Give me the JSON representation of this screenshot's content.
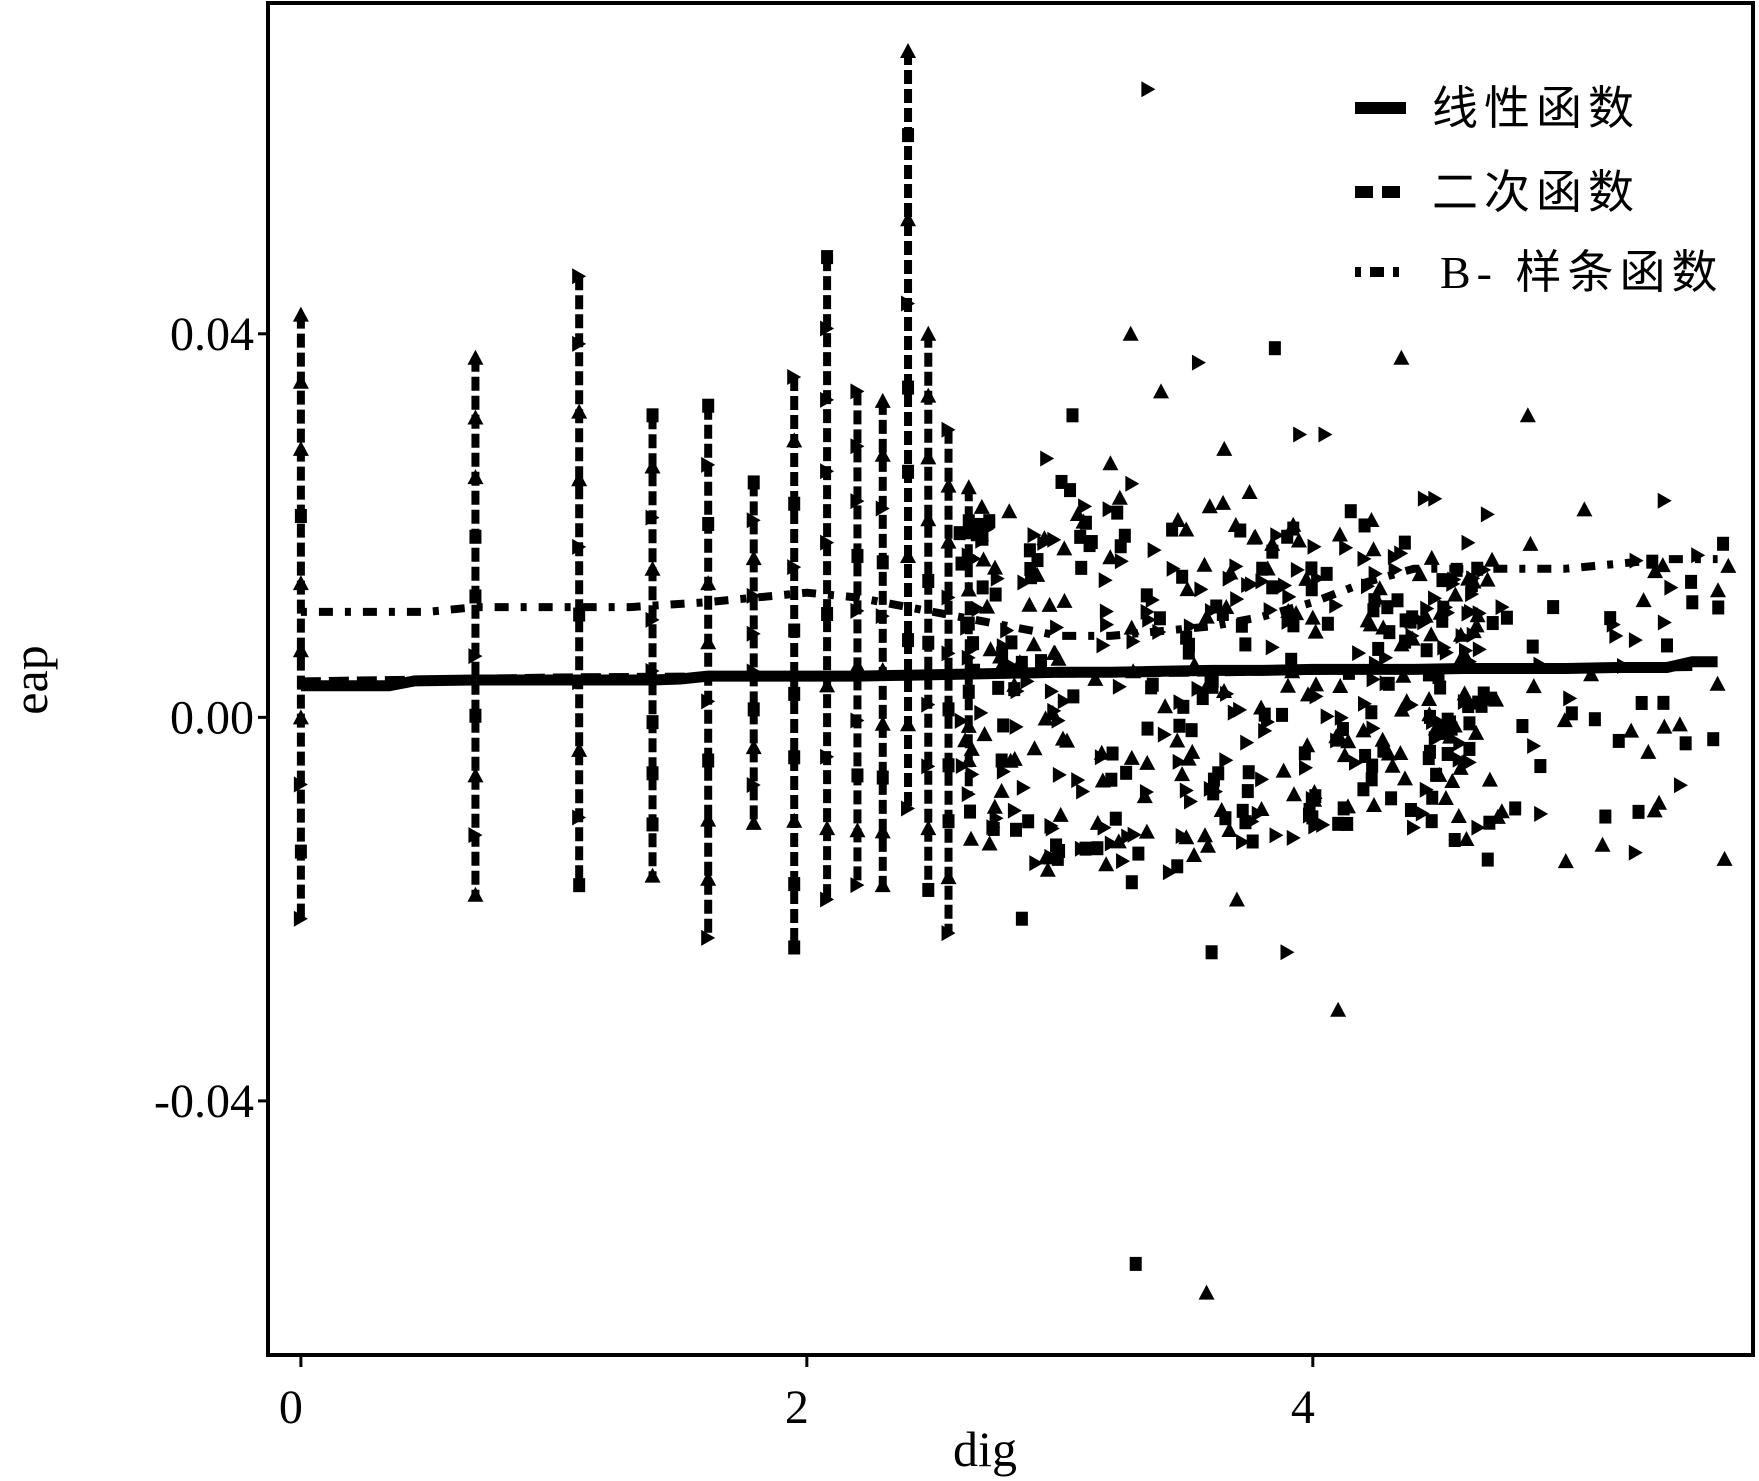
{
  "chart_data": {
    "type": "scatter",
    "xlabel": "dig",
    "ylabel": "eap",
    "xlim": [
      -0.13,
      5.74
    ],
    "ylim": [
      -0.0665,
      0.0745
    ],
    "x_ticks": [
      {
        "value": 0,
        "label": "0"
      },
      {
        "value": 2,
        "label": "2"
      },
      {
        "value": 4,
        "label": "4"
      }
    ],
    "y_ticks": [
      {
        "value": 0.04,
        "label": "0.04"
      },
      {
        "value": 0.0,
        "label": "0.00"
      },
      {
        "value": -0.04,
        "label": "-0.04"
      }
    ],
    "grid": false,
    "legend_position": "top-right",
    "series": [
      {
        "name": "线性函数",
        "type": "line",
        "line_style": "solid",
        "x": [
          0.0,
          0.35,
          0.45,
          0.69,
          1.1,
          1.39,
          1.5,
          1.61,
          1.79,
          1.95,
          2.08,
          2.2,
          2.4,
          2.6,
          2.8,
          3.0,
          3.2,
          3.4,
          3.6,
          3.8,
          4.0,
          4.2,
          4.4,
          4.6,
          4.8,
          5.0,
          5.2,
          5.4,
          5.5,
          5.6
        ],
        "y": [
          0.0033,
          0.0033,
          0.0038,
          0.0039,
          0.0039,
          0.0039,
          0.004,
          0.0043,
          0.0043,
          0.0043,
          0.0043,
          0.0043,
          0.0044,
          0.0045,
          0.0046,
          0.0047,
          0.0047,
          0.0048,
          0.0049,
          0.0049,
          0.005,
          0.005,
          0.005,
          0.0051,
          0.0051,
          0.0051,
          0.0052,
          0.0052,
          0.0058,
          0.0058
        ]
      },
      {
        "name": "二次函数",
        "type": "line",
        "line_style": "dashed",
        "x": [
          0.0,
          0.5,
          1.0,
          1.5,
          2.0,
          2.5,
          3.0,
          3.5,
          4.0,
          4.5,
          5.0,
          5.5
        ],
        "y": [
          0.0037,
          0.0039,
          0.0041,
          0.0042,
          0.0043,
          0.0044,
          0.0046,
          0.0047,
          0.0049,
          0.005,
          0.0051,
          0.0053
        ]
      },
      {
        "name": "B- 样条函数",
        "type": "line",
        "line_style": "dash-dot",
        "x": [
          0.0,
          0.5,
          0.69,
          1.1,
          1.3,
          1.6,
          1.8,
          2.0,
          2.2,
          2.4,
          2.6,
          2.8,
          3.0,
          3.2,
          3.4,
          3.6,
          3.8,
          4.0,
          4.2,
          4.4,
          4.6,
          4.8,
          5.0,
          5.2,
          5.4,
          5.6
        ],
        "y": [
          0.011,
          0.011,
          0.0115,
          0.0115,
          0.0115,
          0.012,
          0.0125,
          0.013,
          0.0125,
          0.0115,
          0.0105,
          0.0095,
          0.0085,
          0.0085,
          0.009,
          0.0095,
          0.0105,
          0.012,
          0.014,
          0.0155,
          0.0155,
          0.0155,
          0.0155,
          0.016,
          0.0165,
          0.0165
        ]
      }
    ],
    "scatter_points": {
      "vertical_clusters": [
        {
          "x": 0.0,
          "y_min": -0.021,
          "y_max": 0.042
        },
        {
          "x": 0.69,
          "y_min": -0.0185,
          "y_max": 0.0375
        },
        {
          "x": 1.1,
          "y_min": -0.0175,
          "y_max": 0.046
        },
        {
          "x": 1.39,
          "y_min": -0.0165,
          "y_max": 0.0315
        },
        {
          "x": 1.61,
          "y_min": -0.023,
          "y_max": 0.0325
        },
        {
          "x": 1.79,
          "y_min": -0.011,
          "y_max": 0.0245
        },
        {
          "x": 1.95,
          "y_min": -0.024,
          "y_max": 0.0355
        },
        {
          "x": 2.08,
          "y_min": -0.019,
          "y_max": 0.048
        },
        {
          "x": 2.2,
          "y_min": -0.0175,
          "y_max": 0.034
        },
        {
          "x": 2.3,
          "y_min": -0.0175,
          "y_max": 0.033
        },
        {
          "x": 2.4,
          "y_min": -0.0095,
          "y_max": 0.0695
        },
        {
          "x": 2.48,
          "y_min": -0.018,
          "y_max": 0.04
        },
        {
          "x": 2.56,
          "y_min": -0.0225,
          "y_max": 0.03
        },
        {
          "x": 2.64,
          "y_min": -0.008,
          "y_max": 0.024
        }
      ],
      "points": [
        [
          2.77,
          -0.0045
        ],
        [
          2.8,
          0.0215
        ],
        [
          2.85,
          -0.021
        ],
        [
          2.9,
          0.019
        ],
        [
          2.95,
          0.027
        ],
        [
          3.0,
          -0.006
        ],
        [
          3.05,
          0.0315
        ],
        [
          3.1,
          0.022
        ],
        [
          3.15,
          -0.011
        ],
        [
          3.2,
          0.0265
        ],
        [
          3.25,
          -0.015
        ],
        [
          3.28,
          0.04
        ],
        [
          3.3,
          -0.057
        ],
        [
          3.35,
          0.0655
        ],
        [
          3.4,
          0.034
        ],
        [
          3.45,
          0.0155
        ],
        [
          3.5,
          -0.0125
        ],
        [
          3.55,
          0.037
        ],
        [
          3.58,
          -0.06
        ],
        [
          3.6,
          -0.0245
        ],
        [
          3.65,
          0.028
        ],
        [
          3.7,
          -0.019
        ],
        [
          3.75,
          0.0235
        ],
        [
          3.8,
          0.0155
        ],
        [
          3.85,
          0.0385
        ],
        [
          3.9,
          -0.0245
        ],
        [
          3.95,
          0.0295
        ],
        [
          4.0,
          -0.0085
        ],
        [
          4.05,
          0.0295
        ],
        [
          4.1,
          -0.0305
        ],
        [
          4.15,
          0.0215
        ],
        [
          4.2,
          -0.0075
        ],
        [
          4.25,
          0.0125
        ],
        [
          4.3,
          0.0035
        ],
        [
          4.35,
          0.0375
        ],
        [
          4.4,
          -0.0115
        ],
        [
          4.45,
          0.007
        ],
        [
          4.5,
          -0.006
        ],
        [
          4.6,
          0.0025
        ],
        [
          4.65,
          0.0155
        ],
        [
          4.7,
          -0.0065
        ],
        [
          4.75,
          0.0115
        ],
        [
          4.8,
          -0.0095
        ],
        [
          4.85,
          0.0315
        ],
        [
          4.9,
          0.0055
        ],
        [
          4.95,
          0.0115
        ],
        [
          5.0,
          -0.015
        ],
        [
          5.1,
          0.0045
        ],
        [
          5.2,
          0.0085
        ],
        [
          5.3,
          0.0015
        ],
        [
          5.4,
          0.0075
        ],
        [
          5.5,
          0.012
        ],
        [
          5.6,
          0.0035
        ]
      ]
    }
  }
}
